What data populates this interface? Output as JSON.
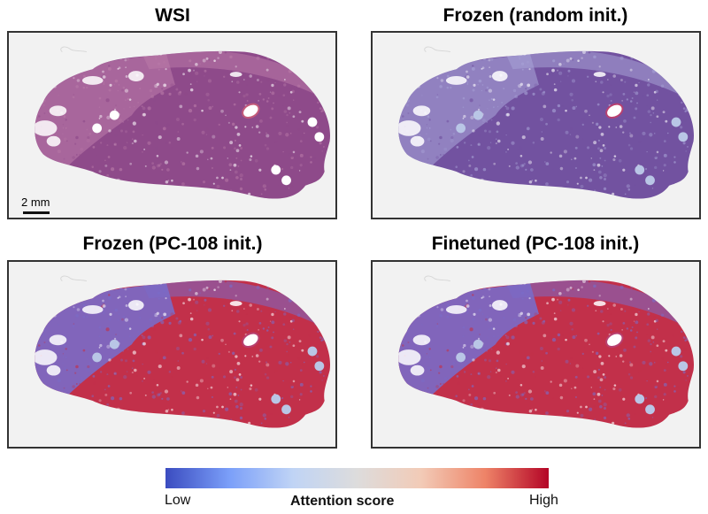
{
  "panels": [
    {
      "id": "wsi",
      "title": "WSI",
      "style": "he",
      "show_scalebar": true
    },
    {
      "id": "frozen-random",
      "title": "Frozen (random init.)",
      "style": "random",
      "show_scalebar": false
    },
    {
      "id": "frozen-pc108",
      "title": "Frozen (PC-108 init.)",
      "style": "attn",
      "show_scalebar": false
    },
    {
      "id": "finetuned-pc108",
      "title": "Finetuned (PC-108 init.)",
      "style": "attn",
      "show_scalebar": false
    }
  ],
  "scalebar": {
    "label": "2 mm"
  },
  "colorbar": {
    "title": "Attention score",
    "low_label": "Low",
    "high_label": "High",
    "colormap": "coolwarm",
    "stops": [
      "#3b4cc0",
      "#7b9ff9",
      "#c0d4f5",
      "#dddcdc",
      "#f2cbb7",
      "#ee8468",
      "#b40426"
    ]
  },
  "palette": {
    "he_main": "#8e4a8a",
    "he_light": "#b97aa8",
    "random_main": "#7252a0",
    "random_light": "#a7a2d6",
    "attn_high": "#c2304a",
    "attn_low": "#7a6cc8",
    "hole": "#b9c6e6"
  }
}
